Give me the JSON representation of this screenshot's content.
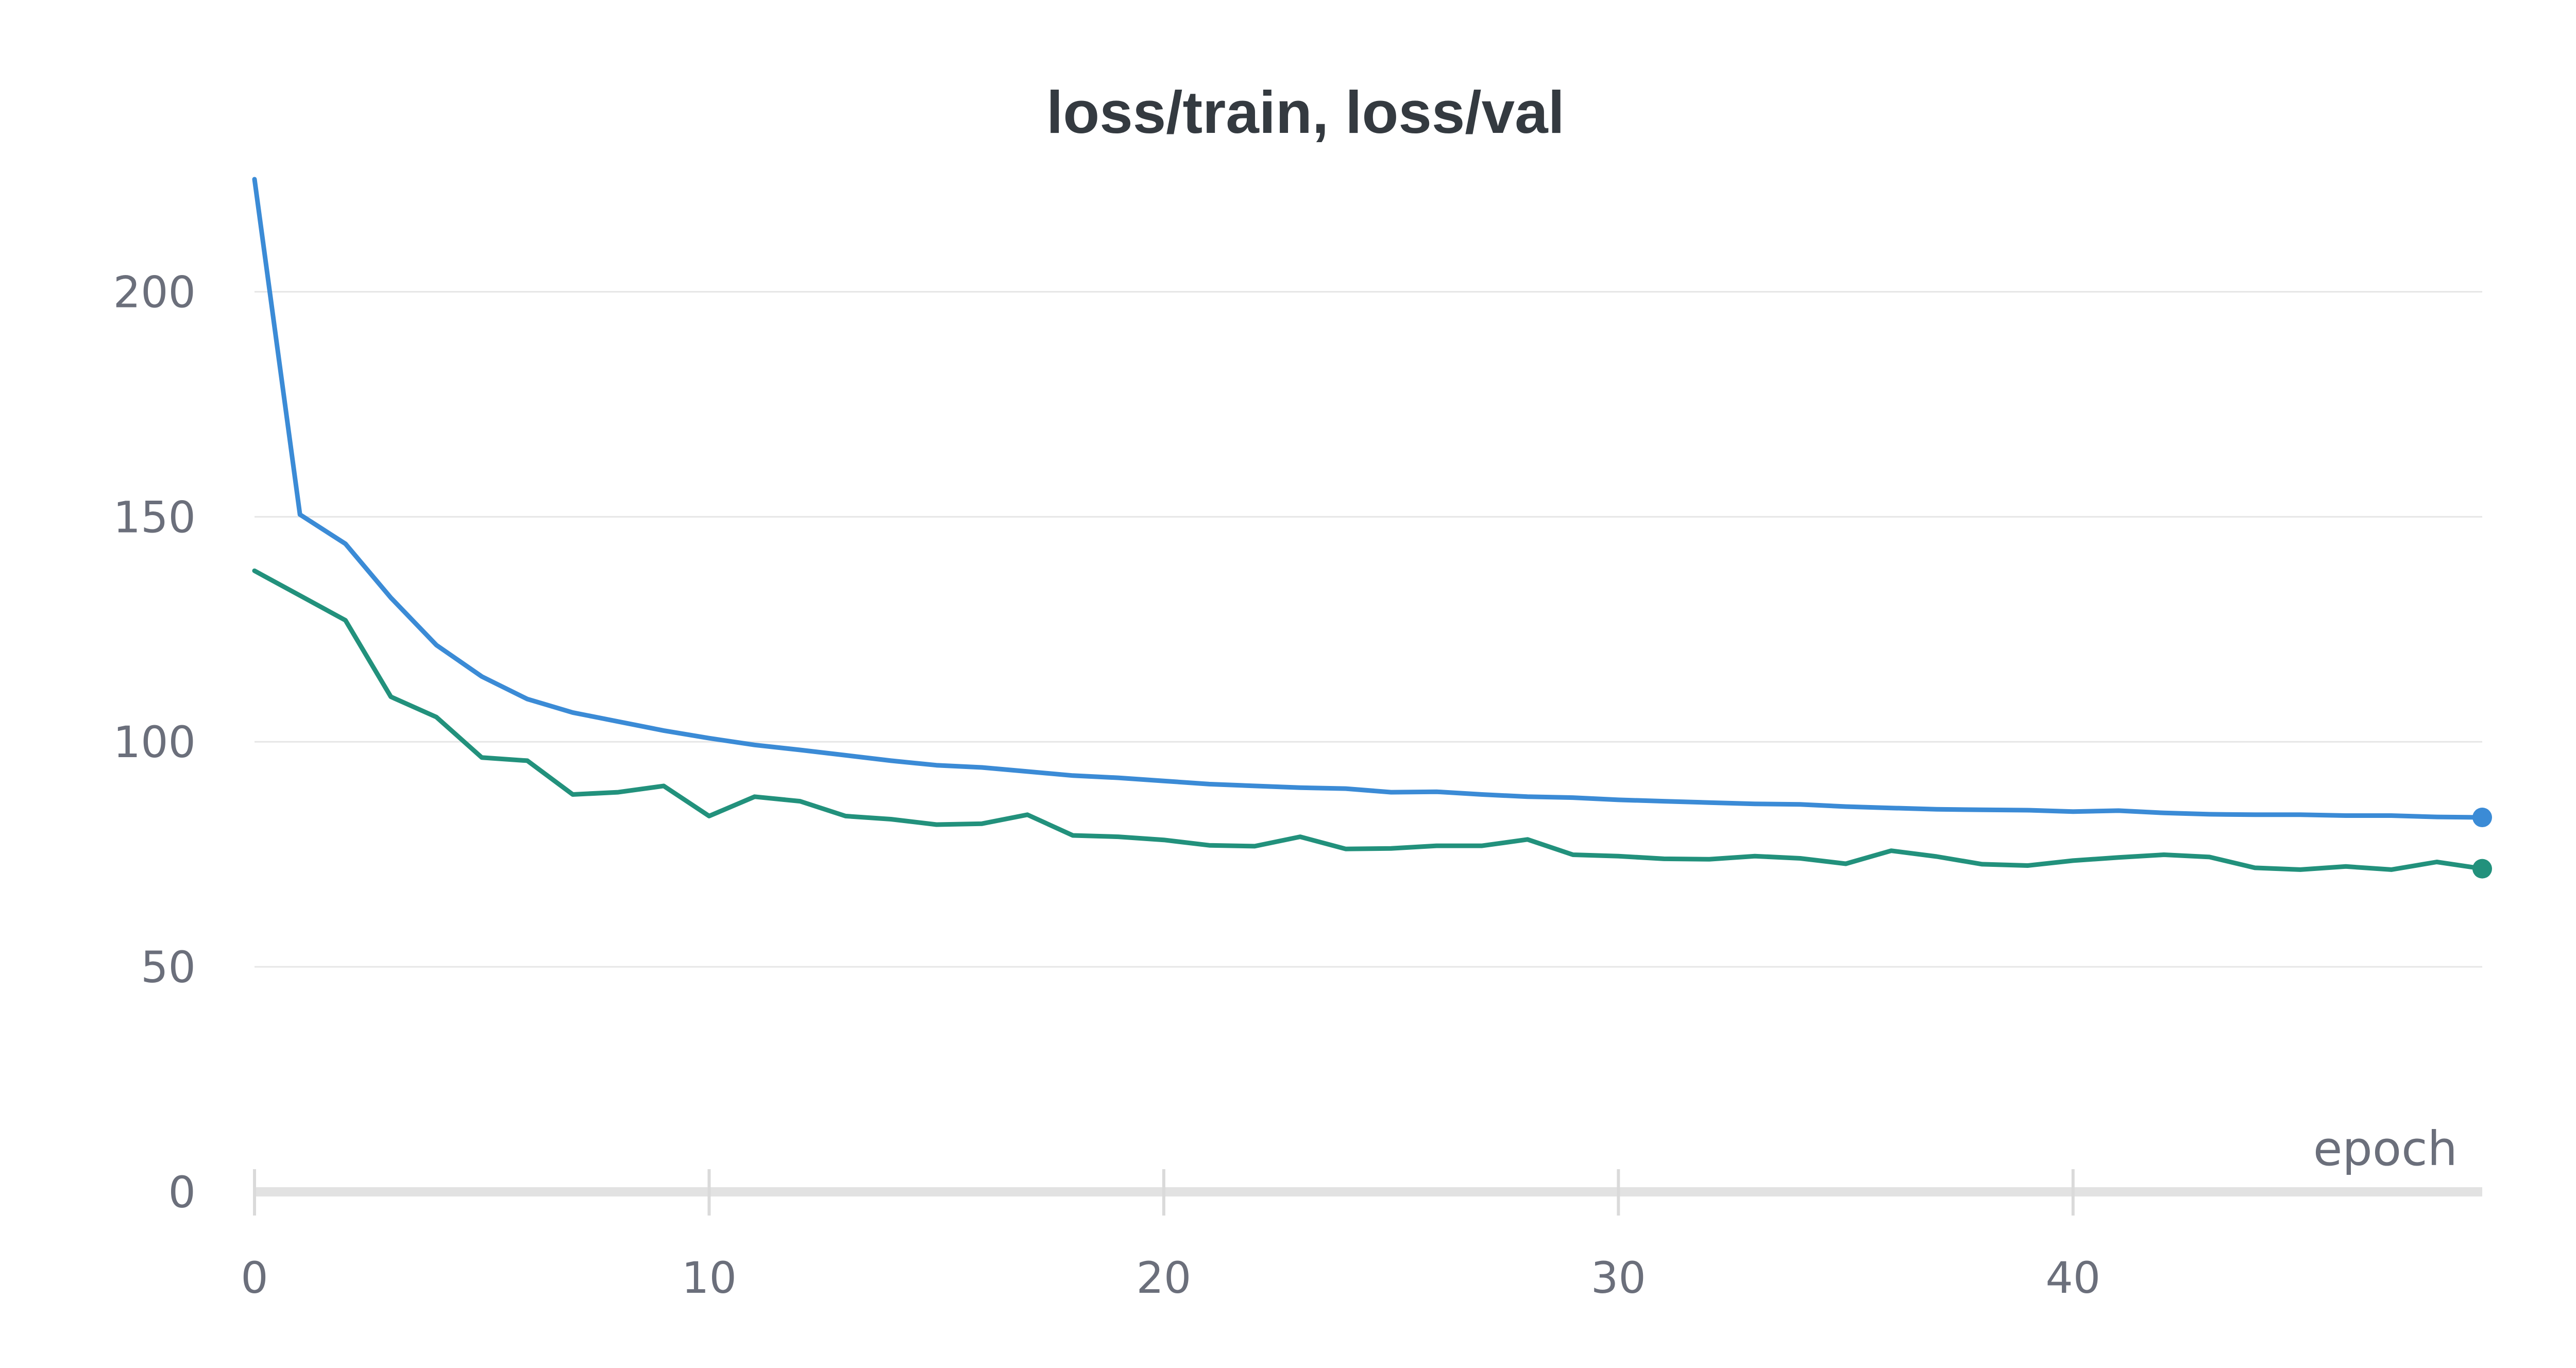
{
  "chart_data": {
    "type": "line",
    "title": "loss/train, loss/val",
    "xlabel": "epoch",
    "ylabel": "",
    "xlim": [
      0,
      49
    ],
    "ylim": [
      0,
      225
    ],
    "xticks": [
      0,
      10,
      20,
      30,
      40
    ],
    "yticks": [
      0,
      50,
      100,
      150,
      200
    ],
    "grid": true,
    "legend": "none",
    "x": [
      0,
      1,
      2,
      3,
      4,
      5,
      6,
      7,
      8,
      9,
      10,
      11,
      12,
      13,
      14,
      15,
      16,
      17,
      18,
      19,
      20,
      21,
      22,
      23,
      24,
      25,
      26,
      27,
      28,
      29,
      30,
      31,
      32,
      33,
      34,
      35,
      36,
      37,
      38,
      39,
      40,
      41,
      42,
      43,
      44,
      45,
      46,
      47,
      48,
      49
    ],
    "series": [
      {
        "color": "#3b8bd6",
        "values": [
          225,
          150.5,
          144,
          132,
          121.5,
          114.5,
          109.5,
          106.5,
          104.5,
          102.5,
          100.8,
          99.3,
          98.2,
          97.0,
          95.8,
          94.8,
          94.3,
          93.4,
          92.5,
          92.0,
          91.3,
          90.6,
          90.2,
          89.8,
          89.6,
          88.8,
          88.9,
          88.3,
          87.8,
          87.6,
          87.1,
          86.8,
          86.5,
          86.2,
          86.1,
          85.6,
          85.3,
          85.0,
          84.9,
          84.8,
          84.5,
          84.7,
          84.2,
          83.9,
          83.8,
          83.8,
          83.6,
          83.6,
          83.3,
          83.2
        ]
      },
      {
        "color": "#22917c",
        "values": [
          138,
          132.5,
          127,
          110,
          105.5,
          96.5,
          95.8,
          88.3,
          88.8,
          90.2,
          83.5,
          87.8,
          86.8,
          83.5,
          82.8,
          81.6,
          81.8,
          83.8,
          79.2,
          78.9,
          78.2,
          77.0,
          76.8,
          78.9,
          76.2,
          76.3,
          76.9,
          76.9,
          78.3,
          74.9,
          74.6,
          74.0,
          73.9,
          74.6,
          74.1,
          72.9,
          75.8,
          74.5,
          72.8,
          72.5,
          73.6,
          74.3,
          74.9,
          74.4,
          72.0,
          71.6,
          72.3,
          71.6,
          73.3,
          71.8
        ]
      }
    ]
  }
}
